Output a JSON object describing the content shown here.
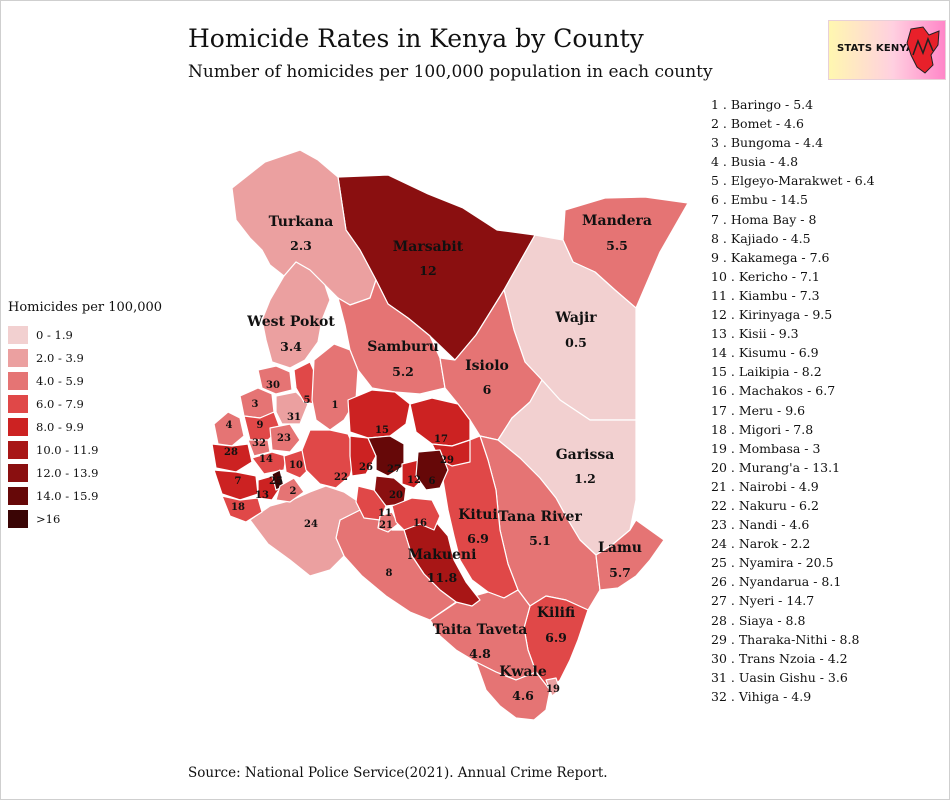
{
  "title": "Homicide Rates in Kenya by County",
  "subtitle": "Number of homicides per 100,000 population in each county",
  "source": "Source: National Police Service(2021). Annual Crime Report.",
  "logo": {
    "text": "STATS KENYA",
    "icon": "kenya-map-icon"
  },
  "legend": {
    "title": "Homicides per 100,000",
    "items": [
      {
        "label": "0 - 1.9",
        "color": "#f2d0d0"
      },
      {
        "label": "2.0 - 3.9",
        "color": "#eba0a0"
      },
      {
        "label": "4.0 - 5.9",
        "color": "#e57474"
      },
      {
        "label": "6.0 - 7.9",
        "color": "#e04848"
      },
      {
        "label": "8.0 - 9.9",
        "color": "#cc2222"
      },
      {
        "label": "10.0 - 11.9",
        "color": "#a81616"
      },
      {
        "label": "12.0 - 13.9",
        "color": "#8a0f10"
      },
      {
        "label": "14.0 - 15.9",
        "color": "#660808"
      },
      {
        "label": ">16",
        "color": "#3a0505"
      }
    ]
  },
  "county_list": [
    "1 . Baringo - 5.4",
    "2 . Bomet - 4.6",
    "3 . Bungoma - 4.4",
    "4 . Busia - 4.8",
    "5 . Elgeyo-Marakwet - 6.4",
    "6 . Embu - 14.5",
    "7 . Homa Bay - 8",
    "8 . Kajiado - 4.5",
    "9 . Kakamega - 7.6",
    "10 . Kericho - 7.1",
    "11 . Kiambu - 7.3",
    "12 . Kirinyaga - 9.5",
    "13 . Kisii - 9.3",
    "14 . Kisumu - 6.9",
    "15 . Laikipia - 8.2",
    "16 . Machakos - 6.7",
    "17 . Meru - 9.6",
    "18 . Migori - 7.8",
    "19 . Mombasa - 3",
    "20 . Murang'a - 13.1",
    "21 . Nairobi - 4.9",
    "22 . Nakuru - 6.2",
    "23 . Nandi - 4.6",
    "24 . Narok - 2.2",
    "25 . Nyamira - 20.5",
    "26 . Nyandarua - 8.1",
    "27 . Nyeri - 14.7",
    "28 . Siaya - 8.8",
    "29 . Tharaka-Nithi - 8.8",
    "30 . Trans Nzoia - 4.2",
    "31 . Uasin Gishu - 3.6",
    "32 . Vihiga - 4.9"
  ],
  "map_labels": {
    "turkana": {
      "name": "Turkana",
      "value": "2.3"
    },
    "marsabit": {
      "name": "Marsabit",
      "value": "12"
    },
    "mandera": {
      "name": "Mandera",
      "value": "5.5"
    },
    "wajir": {
      "name": "Wajir",
      "value": "0.5"
    },
    "west_pokot": {
      "name": "West Pokot",
      "value": "3.4"
    },
    "samburu": {
      "name": "Samburu",
      "value": "5.2"
    },
    "isiolo": {
      "name": "Isiolo",
      "value": "6"
    },
    "garissa": {
      "name": "Garissa",
      "value": "1.2"
    },
    "kitui": {
      "name": "Kitui",
      "value": "6.9"
    },
    "tana_river": {
      "name": "Tana River",
      "value": "5.1"
    },
    "lamu": {
      "name": "Lamu",
      "value": "5.7"
    },
    "makueni": {
      "name": "Makueni",
      "value": "11.8"
    },
    "kilifi": {
      "name": "Kilifi",
      "value": "6.9"
    },
    "taita_taveta": {
      "name": "Taita Taveta",
      "value": "4.8"
    },
    "kwale": {
      "name": "Kwale",
      "value": "4.6"
    },
    "narok_num": "24",
    "kajiado_num": "8",
    "mombasa_num": "19",
    "small_nums": [
      "30",
      "3",
      "31",
      "9",
      "1",
      "5",
      "4",
      "32",
      "23",
      "28",
      "14",
      "10",
      "7",
      "13",
      "2",
      "25",
      "18",
      "15",
      "17",
      "22",
      "26",
      "27",
      "12",
      "6",
      "29",
      "20",
      "11",
      "21",
      "16"
    ]
  }
}
